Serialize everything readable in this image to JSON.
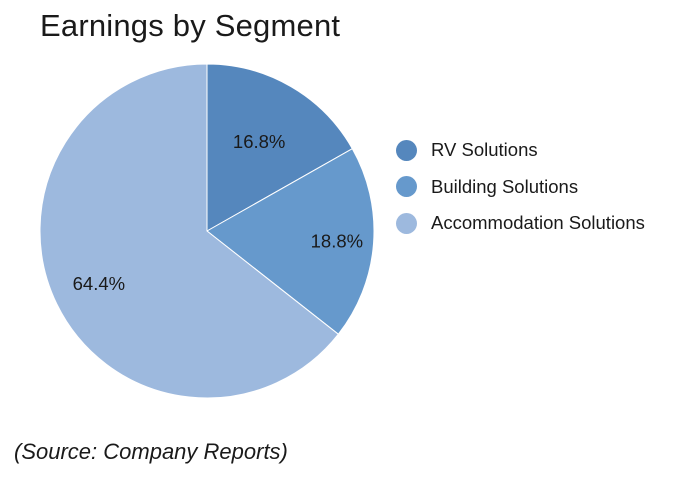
{
  "chart_data": {
    "type": "pie",
    "title": "Earnings by Segment",
    "slices": [
      {
        "name": "RV Solutions",
        "value": 16.8,
        "label": "16.8%",
        "color": "#5587bd"
      },
      {
        "name": "Building Solutions",
        "value": 18.8,
        "label": "18.8%",
        "color": "#6699cc"
      },
      {
        "name": "Accommodation Solutions",
        "value": 64.4,
        "label": "64.4%",
        "color": "#9db9de"
      }
    ],
    "legend_position": "right"
  },
  "footer": {
    "source": "(Source: Company Reports)"
  }
}
